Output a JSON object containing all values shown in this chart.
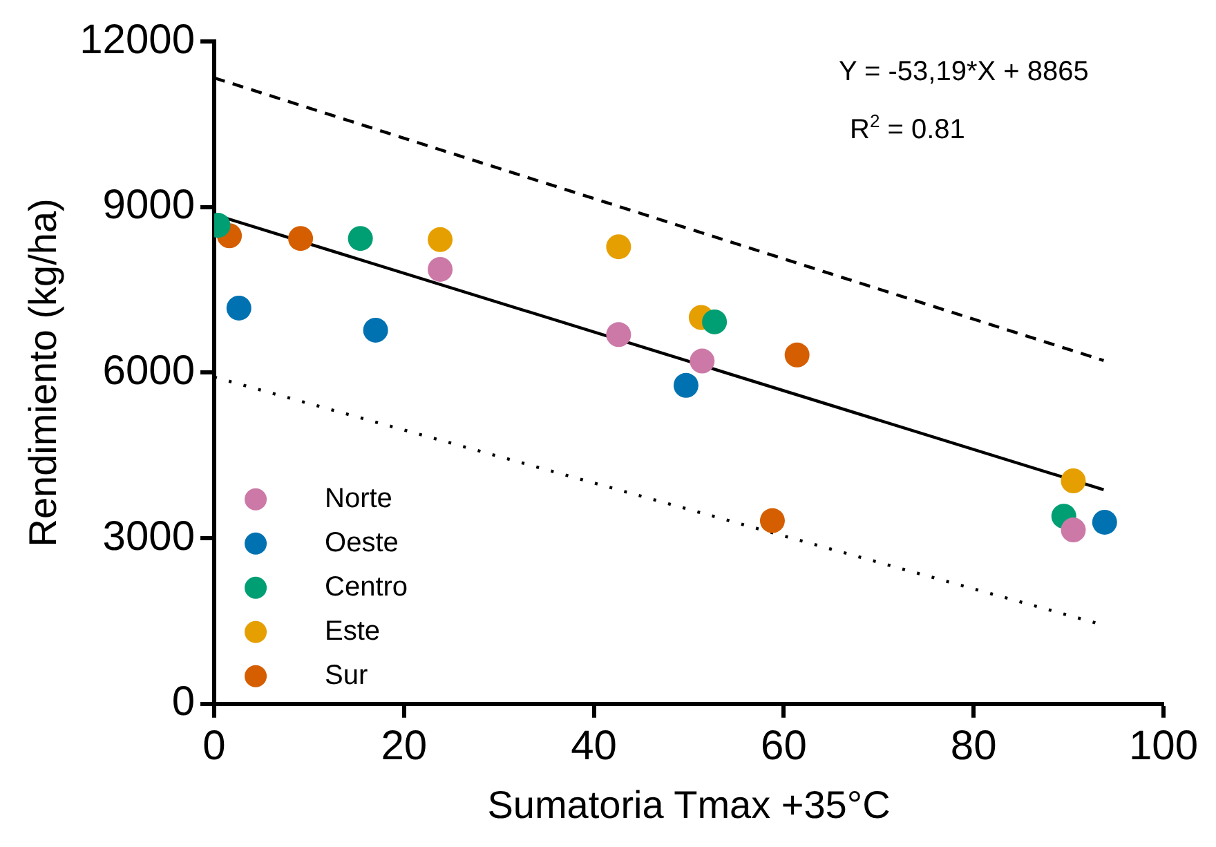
{
  "chart_data": {
    "type": "scatter",
    "xlabel": "Sumatoria Tmax +35°C",
    "ylabel": "Rendimiento (kg/ha)",
    "xlim": [
      0,
      100
    ],
    "xticks": [
      0,
      20,
      40,
      60,
      80,
      100
    ],
    "ylim": [
      0,
      12000
    ],
    "yticks": [
      0,
      3000,
      6000,
      9000,
      12000
    ],
    "grid": false,
    "legend": "bottom left",
    "marker": "circle",
    "annotations": [
      "Y = -53,19*X + 8865",
      "R$^{2}$ = 0.81"
    ],
    "series": [
      {
        "name": "Norte",
        "color": "#cc79a7",
        "x": [
          23.8,
          42.6,
          51.4,
          90.5
        ],
        "values": [
          7870,
          6690,
          6210,
          3150
        ]
      },
      {
        "name": "Oeste",
        "color": "#0072b2",
        "x": [
          2.6,
          17.0,
          49.7,
          93.8
        ],
        "values": [
          7170,
          6770,
          5770,
          3290
        ]
      },
      {
        "name": "Centro",
        "color": "#009e73",
        "x": [
          0.4,
          15.4,
          52.7,
          89.5
        ],
        "values": [
          8670,
          8430,
          6920,
          3400
        ]
      },
      {
        "name": "Este",
        "color": "#e69f00",
        "x": [
          23.8,
          42.6,
          51.3,
          90.5
        ],
        "values": [
          8410,
          8280,
          7000,
          4040
        ]
      },
      {
        "name": "Sur",
        "color": "#d55e00",
        "x": [
          1.6,
          9.1,
          61.4,
          58.8
        ],
        "values": [
          8480,
          8430,
          6320,
          3320
        ]
      },
      {
        "type": "line",
        "color": "#000000",
        "line_style": "solid",
        "marker": "none",
        "x": [
          0,
          93.7
        ],
        "values": [
          8865,
          3880
        ]
      },
      {
        "type": "line",
        "color": "#000000",
        "line_style": "dashed",
        "marker": "none",
        "x": [
          0,
          93.7
        ],
        "values": [
          11340,
          6220
        ]
      },
      {
        "type": "line",
        "color": "#000000",
        "line_style": "dotted",
        "marker": "none",
        "x": [
          0,
          93.0
        ],
        "values": [
          5920,
          1460
        ]
      }
    ]
  }
}
